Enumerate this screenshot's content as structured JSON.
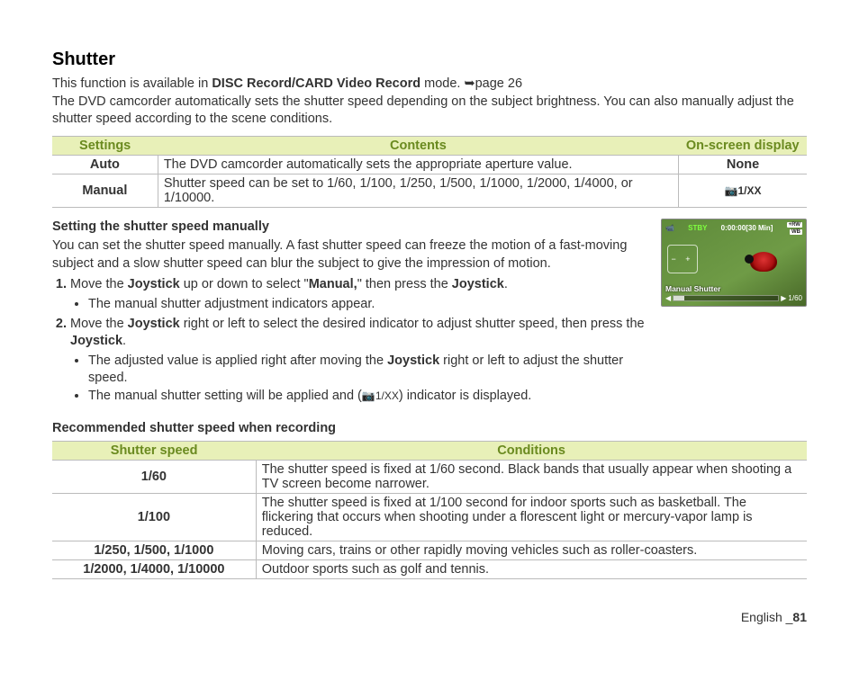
{
  "title": "Shutter",
  "intro_1a": "This function is available in ",
  "intro_1b": "DISC Record/CARD Video Record",
  "intro_1c": " mode. ",
  "intro_1d": "➥page 26",
  "intro_2": "The DVD camcorder automatically sets the shutter speed depending on the subject brightness. You can also manually adjust the shutter speed according to the scene conditions.",
  "t1": {
    "h1": "Settings",
    "h2": "Contents",
    "h3": "On-screen display",
    "r1c1": "Auto",
    "r1c2": "The DVD camcorder automatically sets the appropriate aperture value.",
    "r1c3": "None",
    "r2c1": "Manual",
    "r2c2": "Shutter speed can be set to 1/60, 1/100, 1/250, 1/500, 1/1000, 1/2000, 1/4000, or 1/10000.",
    "r2c3": "📷1/XX"
  },
  "manual": {
    "heading": "Setting the shutter speed manually",
    "p": "You can set the shutter speed manually. A fast shutter speed can freeze the motion of a fast-moving subject and a slow shutter speed can blur the subject to give the impression of motion.",
    "s1a": "Move the ",
    "s1b": "Joystick",
    "s1c": " up or down to select \"",
    "s1d": "Manual,",
    "s1e": "\" then press the ",
    "s1f": "Joystick",
    "s1g": ".",
    "s1b1": "The manual shutter adjustment indicators appear.",
    "s2a": "Move the ",
    "s2b": "Joystick",
    "s2c": " right or left to select the desired indicator to adjust shutter speed, then press the ",
    "s2d": "Joystick",
    "s2e": ".",
    "s2b1a": "The adjusted value is applied right after moving the ",
    "s2b1b": "Joystick",
    "s2b1c": " right or left to adjust the shutter speed.",
    "s2b2a": "The manual shutter setting will be applied and (",
    "s2b2b": "📷1/XX",
    "s2b2c": ") indicator is displayed."
  },
  "lcd": {
    "stby": "STBY",
    "time": "0:00:00[30 Min]",
    "badge1": "+RW",
    "badge2": "WB",
    "ms": "Manual Shutter",
    "val": "1/60",
    "arrL": "◀",
    "arrR": "▶"
  },
  "rec_heading": "Recommended shutter speed when recording",
  "t2": {
    "h1": "Shutter speed",
    "h2": "Conditions",
    "r1c1": "1/60",
    "r1c2": "The shutter speed is fixed at 1/60 second. Black bands that usually appear when shooting a TV screen become narrower.",
    "r2c1": "1/100",
    "r2c2": "The shutter speed is fixed at 1/100 second for indoor sports such as basketball. The flickering that occurs when shooting under a florescent light or mercury-vapor lamp is reduced.",
    "r3c1": "1/250, 1/500, 1/1000",
    "r3c2": "Moving cars, trains or other rapidly moving vehicles such as roller-coasters.",
    "r4c1": "1/2000, 1/4000, 1/10000",
    "r4c2": "Outdoor sports such as golf and tennis."
  },
  "footer_a": "English _",
  "footer_b": "81"
}
